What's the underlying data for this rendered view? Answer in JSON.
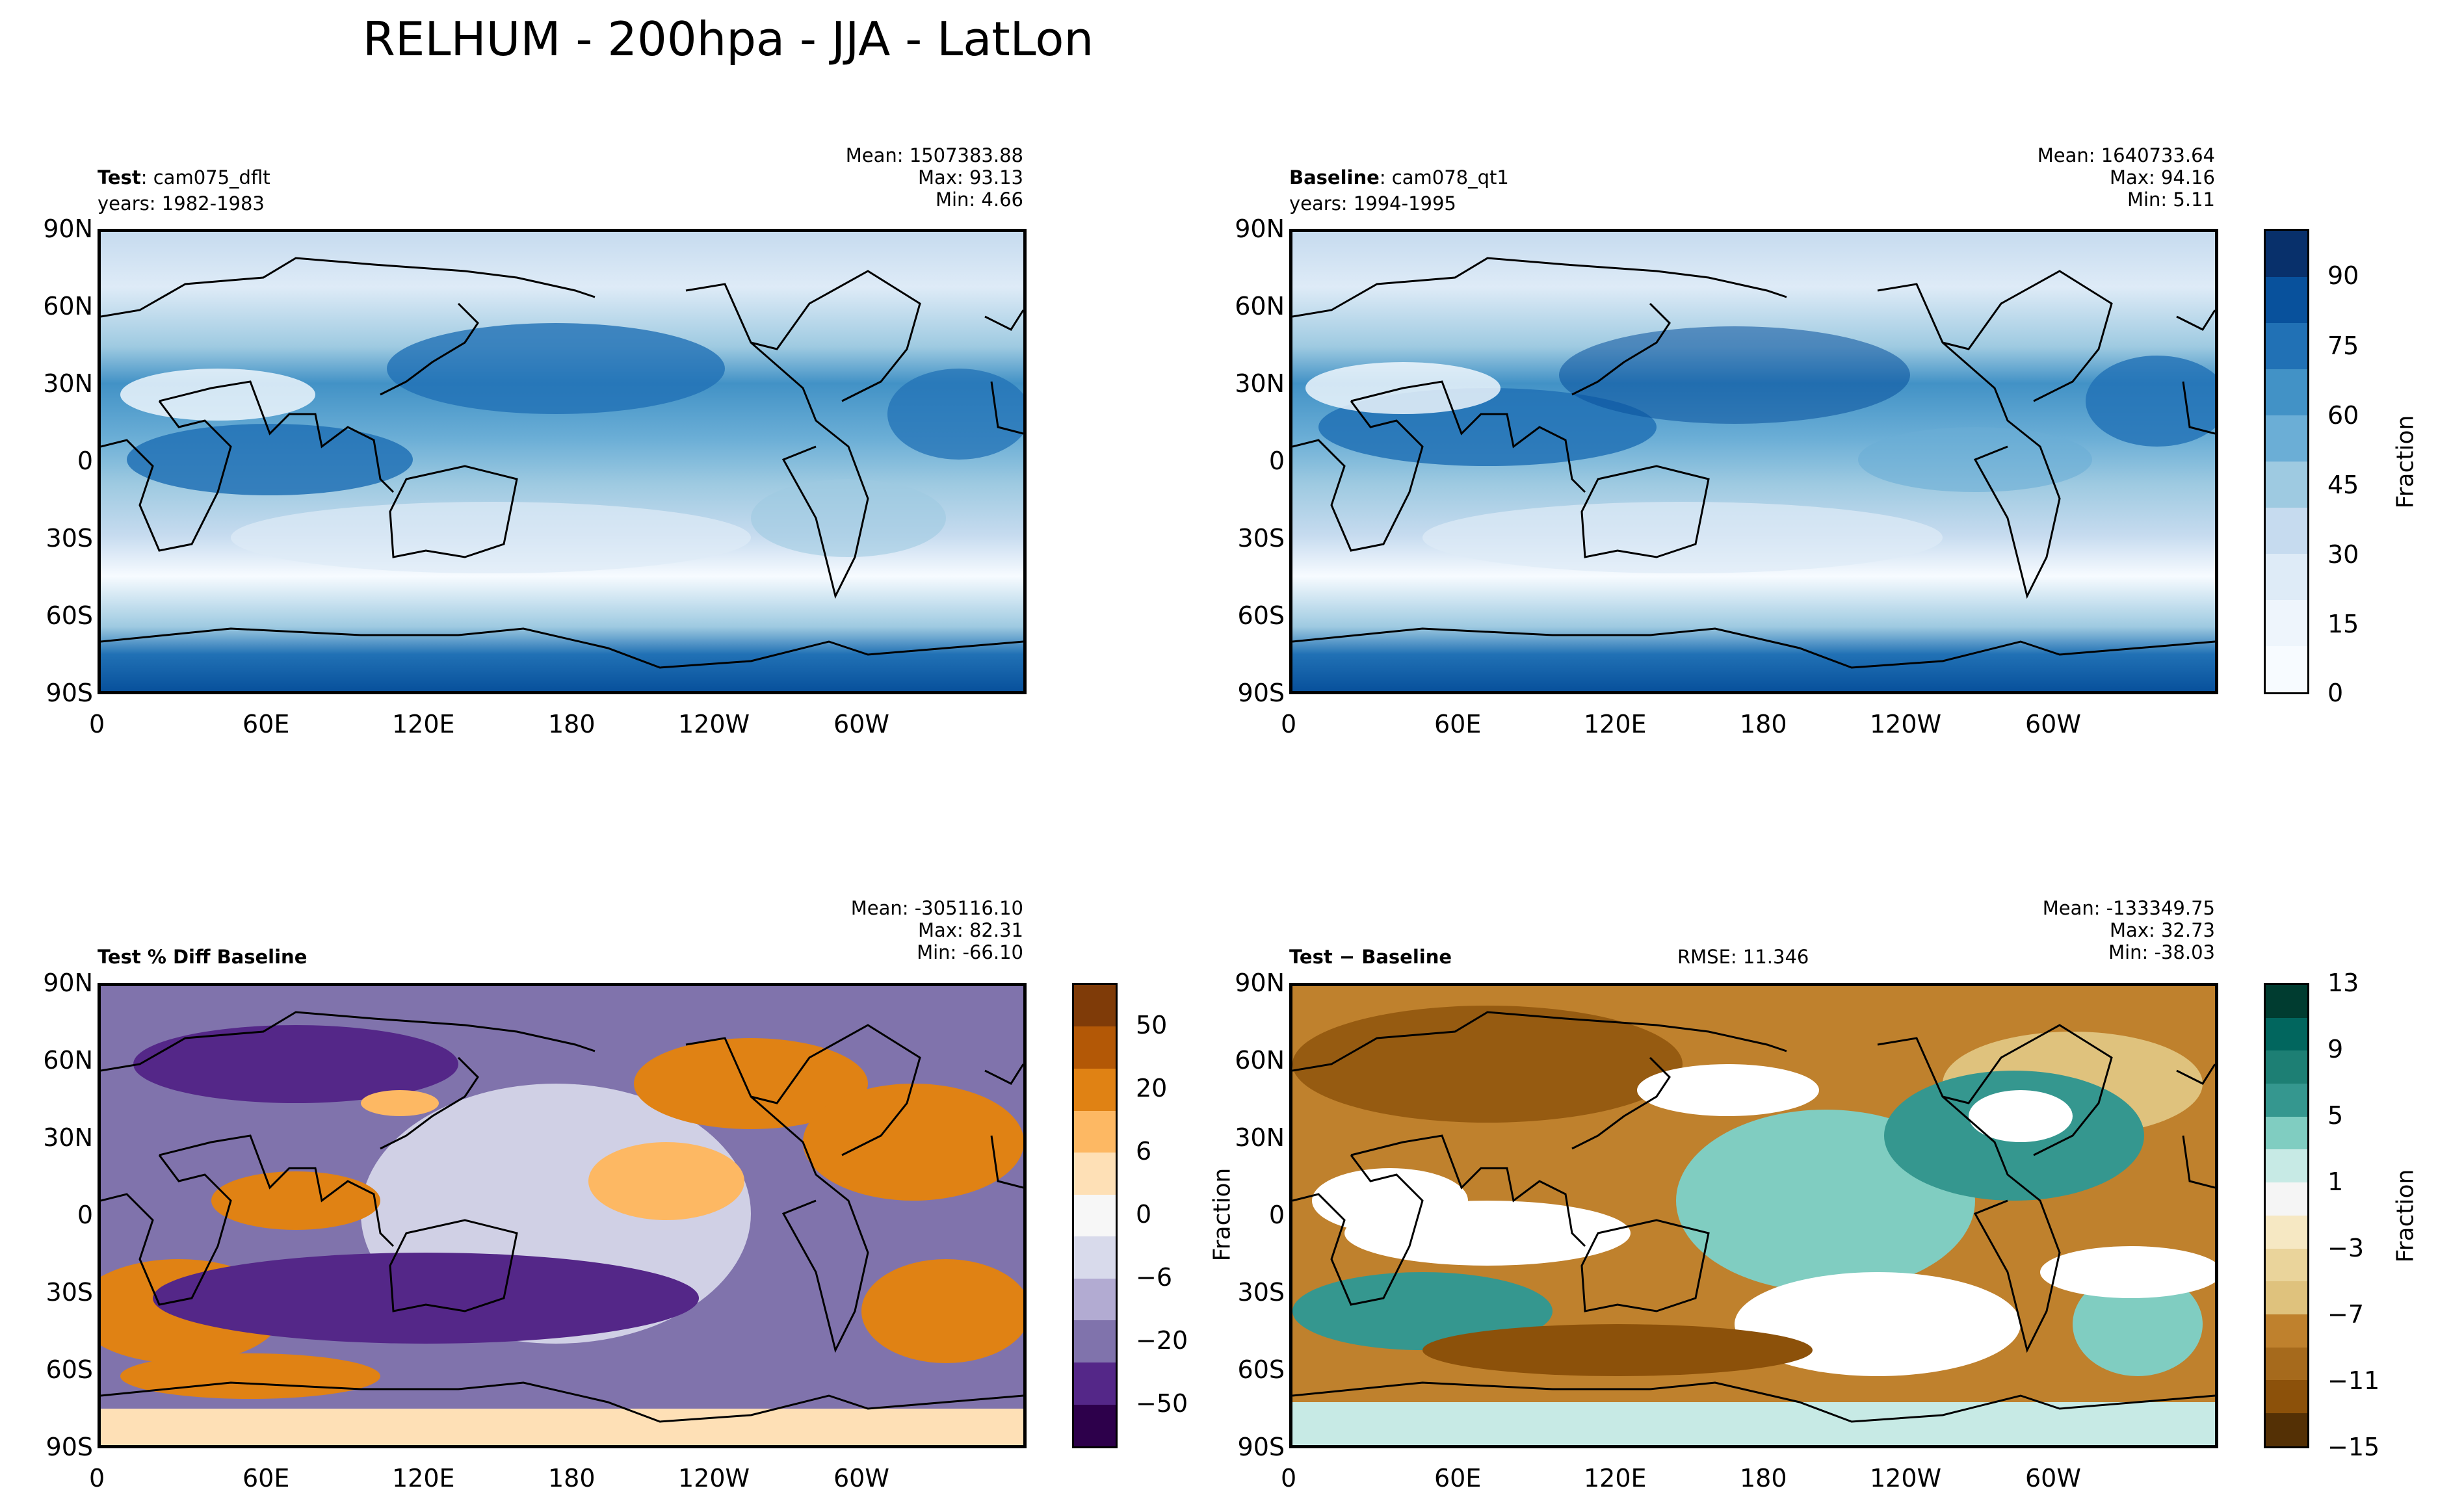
{
  "title": "RELHUM - 200hpa - JJA - LatLon",
  "lat_ticks": [
    "90N",
    "60N",
    "30N",
    "0",
    "30S",
    "60S",
    "90S"
  ],
  "lon_ticks": [
    "0",
    "60E",
    "120E",
    "180",
    "120W",
    "60W"
  ],
  "panels": {
    "test": {
      "label_bold": "Test",
      "label_rest": ": cam075_dflt",
      "years": "years: 1982-1983",
      "mean": "Mean: 1507383.88",
      "max": "Max: 93.13",
      "min": "Min:  4.66"
    },
    "baseline": {
      "label_bold": "Baseline",
      "label_rest": ": cam078_qt1",
      "years": "years: 1994-1995",
      "mean": "Mean: 1640733.64",
      "max": "Max: 94.16",
      "min": "Min:  5.11"
    },
    "pct_diff": {
      "label_bold": "Test % Diff Baseline",
      "mean": "Mean: -305116.10",
      "max": "Max: 82.31",
      "min": "Min: -66.10"
    },
    "diff": {
      "label_bold": "Test − Baseline",
      "rmse": "RMSE: 11.346",
      "ylabel": "Fraction",
      "mean": "Mean: -133349.75",
      "max": "Max: 32.73",
      "min": "Min: -38.03"
    }
  },
  "colorbars": {
    "main": {
      "label": "Fraction",
      "ticks": [
        "90",
        "75",
        "60",
        "45",
        "30",
        "15",
        "0"
      ],
      "range": [
        0,
        100
      ]
    },
    "pct": {
      "label": "",
      "ticks": [
        "50",
        "20",
        "6",
        "0",
        "−6",
        "−20",
        "−50"
      ]
    },
    "diff": {
      "label": "Fraction",
      "ticks": [
        "13",
        "9",
        "5",
        "1",
        "−3",
        "−7",
        "−11",
        "−15"
      ],
      "range": [
        -15,
        13
      ]
    }
  },
  "colors": {
    "blues": [
      "#f7fbff",
      "#deebf7",
      "#c6dbef",
      "#9ecae1",
      "#6baed6",
      "#4292c6",
      "#2171b5",
      "#08519c",
      "#08306b"
    ],
    "purple_orange": [
      "#2d004b",
      "#542788",
      "#8073ac",
      "#b2abd2",
      "#d8daeb",
      "#f7f7f7",
      "#fee0b6",
      "#fdb863",
      "#e08214",
      "#b35806",
      "#7f3b08"
    ],
    "brown_teal": [
      "#543005",
      "#8c510a",
      "#bf812d",
      "#dfc27d",
      "#f6e8c3",
      "#f5f5f5",
      "#c7eae5",
      "#80cdc1",
      "#35978f",
      "#01665e",
      "#003c30"
    ],
    "coast": "#000000"
  }
}
